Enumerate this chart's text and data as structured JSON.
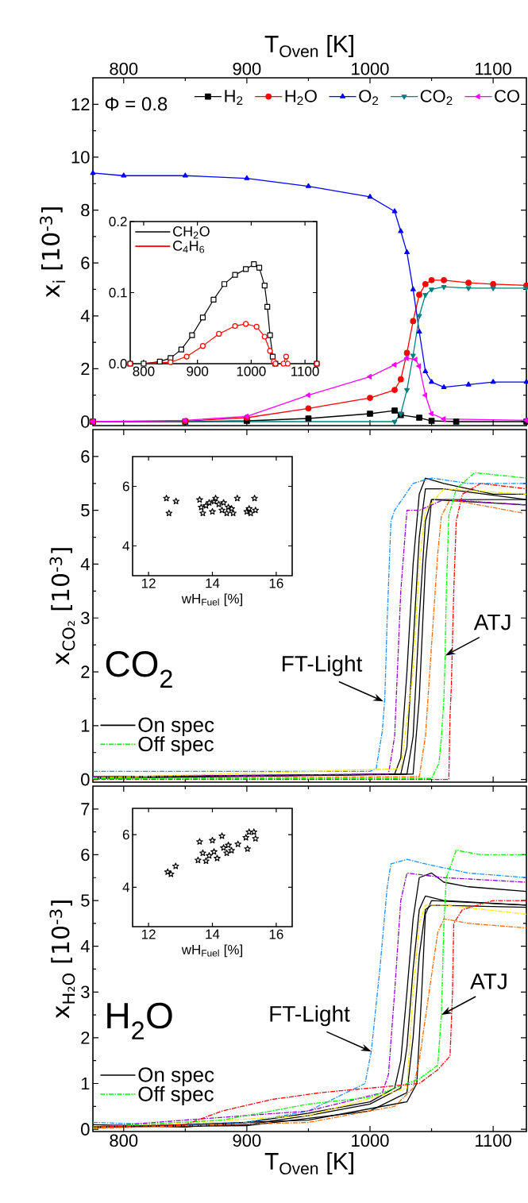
{
  "chart_data": [
    {
      "type": "line",
      "xlim": [
        775,
        1127
      ],
      "xticks": [
        800,
        900,
        1000,
        1100
      ],
      "xlabel": "T$_{Oven}$ [K]",
      "ylim": [
        -0.15,
        13
      ],
      "yticks": [
        0,
        2,
        4,
        6,
        8,
        10,
        12
      ],
      "ylabel": "x$_{i}$ [10$^{-3}$]",
      "legend": "top right",
      "annotations": [
        "Φ = 0.8"
      ],
      "series": [
        {
          "name": "H$_{2}$",
          "color": "#000000",
          "marker": "square",
          "x": [
            775,
            850,
            900,
            950,
            1000,
            1020,
            1025,
            1040,
            1050,
            1070,
            1127
          ],
          "values": [
            0,
            0,
            0.03,
            0.12,
            0.3,
            0.42,
            0.25,
            0.15,
            0.03,
            0,
            0
          ]
        },
        {
          "name": "H$_{2}$O",
          "color": "#ff0000",
          "marker": "circle",
          "x": [
            775,
            850,
            900,
            950,
            1000,
            1020,
            1025,
            1030,
            1035,
            1040,
            1045,
            1050,
            1060,
            1080,
            1100,
            1127
          ],
          "values": [
            0,
            0.02,
            0.15,
            0.5,
            0.9,
            1.2,
            1.6,
            2.6,
            3.8,
            4.8,
            5.2,
            5.35,
            5.35,
            5.25,
            5.2,
            5.15
          ]
        },
        {
          "name": "O$_{2}$",
          "color": "#0000ff",
          "marker": "triangle",
          "x": [
            775,
            800,
            850,
            900,
            950,
            1000,
            1020,
            1025,
            1030,
            1035,
            1040,
            1045,
            1050,
            1060,
            1080,
            1100,
            1127
          ],
          "values": [
            9.4,
            9.3,
            9.3,
            9.2,
            8.9,
            8.5,
            7.95,
            7.2,
            6.4,
            5.0,
            3.4,
            1.9,
            1.5,
            1.3,
            1.4,
            1.5,
            1.5
          ]
        },
        {
          "name": "CO$_{2}$",
          "color": "#008080",
          "marker": "triangle-down",
          "x": [
            775,
            1020,
            1025,
            1030,
            1035,
            1040,
            1045,
            1050,
            1060,
            1080,
            1100,
            1127
          ],
          "values": [
            0,
            0,
            0.3,
            1.2,
            2.5,
            4.0,
            4.8,
            5.0,
            5.1,
            5.05,
            5.05,
            5.05
          ]
        },
        {
          "name": "CO",
          "color": "#ff00ff",
          "marker": "triangle-left",
          "x": [
            775,
            850,
            900,
            950,
            1000,
            1020,
            1030,
            1037,
            1040,
            1045,
            1050,
            1060,
            1127
          ],
          "values": [
            0,
            0.05,
            0.2,
            1.0,
            1.7,
            2.15,
            2.4,
            2.35,
            2.1,
            1.0,
            0.3,
            0.1,
            0.05
          ]
        }
      ]
    },
    {
      "type": "line",
      "xlim": [
        775,
        1122
      ],
      "xticks": [
        800,
        900,
        1000,
        1100
      ],
      "ylim": [
        0,
        0.2
      ],
      "yticks": [
        {
          "value": 0,
          "label": "0.0"
        },
        0.1,
        0.2
      ],
      "legend": "top left",
      "series": [
        {
          "name": "CH$_{2}$O",
          "color": "#000000",
          "marker": "square",
          "x": [
            775,
            800,
            830,
            850,
            870,
            890,
            910,
            930,
            950,
            970,
            990,
            1005,
            1015,
            1025,
            1030,
            1035,
            1040,
            1045,
            1122
          ],
          "values": [
            0,
            0,
            0.003,
            0.008,
            0.02,
            0.04,
            0.065,
            0.09,
            0.112,
            0.125,
            0.133,
            0.14,
            0.135,
            0.11,
            0.08,
            0.04,
            0.01,
            0,
            0
          ]
        },
        {
          "name": "C$_{4}$H$_{6}$",
          "color": "#ff0000",
          "marker": "circle",
          "x": [
            775,
            850,
            880,
            910,
            940,
            970,
            990,
            1010,
            1025,
            1035,
            1042,
            1045,
            1060,
            1065,
            1068,
            1122
          ],
          "values": [
            0,
            0.002,
            0.01,
            0.025,
            0.042,
            0.053,
            0.056,
            0.052,
            0.038,
            0.018,
            0.003,
            0,
            0,
            0.01,
            0,
            0
          ]
        }
      ]
    },
    {
      "type": "line",
      "xlim": [
        775,
        1127
      ],
      "xticks": [
        800,
        900,
        1000,
        1100
      ],
      "tick_labels": "y",
      "ylim": [
        -0.05,
        6.5
      ],
      "yticks": [
        0,
        1,
        2,
        3,
        4,
        5,
        6
      ],
      "ylabel": "x$_{CO₂}$ [10$^{-3}$]",
      "legend": "bottom left",
      "annotations": [
        "CO$_{2}$",
        {
          "text": "FT-Light",
          "x": 1011,
          "y": 1.45
        },
        {
          "text": "ATJ",
          "x": 1061,
          "y": 2.3
        }
      ],
      "series": [
        {
          "name": "On spec",
          "color": "#000000",
          "line_style": "solid",
          "x": [
            775,
            1020,
            1025,
            1030,
            1035,
            1040,
            1045,
            1060,
            1080,
            1100,
            1127
          ],
          "values": [
            0.05,
            0.1,
            0.4,
            2.0,
            4.0,
            5.3,
            5.6,
            5.5,
            5.4,
            5.3,
            5.3
          ]
        },
        {
          "color": "#000000",
          "line_style": "solid",
          "x": [
            775,
            1025,
            1030,
            1035,
            1040,
            1045,
            1060,
            1127
          ],
          "values": [
            0.03,
            0.1,
            0.6,
            2.5,
            4.5,
            5.4,
            5.4,
            5.2
          ]
        },
        {
          "color": "#000000",
          "line_style": "solid",
          "x": [
            775,
            1030,
            1035,
            1040,
            1045,
            1050,
            1127
          ],
          "values": [
            0.03,
            0.1,
            0.8,
            3.0,
            4.8,
            5.2,
            5.1
          ]
        },
        {
          "color": "#000000",
          "line_style": "solid",
          "x": [
            775,
            1035,
            1040,
            1045,
            1050,
            1127
          ],
          "values": [
            0.02,
            0.1,
            1.5,
            4.0,
            5.2,
            5.2
          ]
        },
        {
          "color": "#1e90ff",
          "line_style": "dashdot",
          "x": [
            775,
            1000,
            1005,
            1010,
            1012,
            1014,
            1017,
            1020,
            1035,
            1050,
            1080,
            1127
          ],
          "values": [
            0.15,
            0.15,
            0.2,
            0.9,
            1.5,
            3.0,
            4.8,
            5.0,
            5.5,
            5.6,
            5.5,
            5.5
          ]
        },
        {
          "color": "#9400d3",
          "line_style": "dashdot",
          "x": [
            775,
            1015,
            1020,
            1025,
            1030,
            1040,
            1060,
            1127
          ],
          "values": [
            0.05,
            0.1,
            0.8,
            3.5,
            5.0,
            5.0,
            5.2,
            5.1
          ]
        },
        {
          "color": "#ffe600",
          "line_style": "dashdot",
          "x": [
            775,
            1025,
            1035,
            1040,
            1045,
            1060,
            1127
          ],
          "values": [
            0.03,
            0.2,
            2.0,
            4.0,
            5.0,
            5.4,
            5.3
          ]
        },
        {
          "color": "#ff6a00",
          "line_style": "dashdot",
          "x": [
            775,
            1040,
            1045,
            1050,
            1055,
            1058,
            1065,
            1124
          ],
          "values": [
            0.02,
            0.05,
            0.8,
            2.5,
            4.2,
            4.9,
            5.2,
            4.95
          ]
        },
        {
          "name": "Off spec",
          "color": "#00ff00",
          "line_style": "dashdot",
          "x": [
            775,
            1050,
            1056,
            1058,
            1060,
            1061,
            1062,
            1064,
            1070,
            1085,
            1127
          ],
          "values": [
            0.02,
            0.02,
            0.3,
            0.8,
            1.5,
            2.3,
            3.5,
            4.9,
            5.4,
            5.7,
            5.6
          ]
        },
        {
          "color": "#ff0000",
          "line_style": "dashdot",
          "x": [
            775,
            1064,
            1065,
            1066,
            1068,
            1070,
            1075,
            1090,
            1127
          ],
          "values": [
            0,
            0,
            1.2,
            1.7,
            3.5,
            4.8,
            5.3,
            5.5,
            5.4
          ]
        }
      ]
    },
    {
      "type": "scatter",
      "xlim": [
        11.5,
        16.5
      ],
      "xticks": [
        12,
        14,
        16
      ],
      "ylim": [
        3,
        7
      ],
      "yticks": [
        4,
        6
      ],
      "xlabel": "wH$_{Fuel}$ [%]",
      "marker": "star",
      "color": "#000000",
      "x": [
        12.56,
        12.86,
        12.64,
        13.6,
        13.65,
        13.7,
        13.8,
        13.9,
        14.0,
        14.05,
        14.1,
        14.2,
        14.3,
        14.35,
        14.45,
        14.5,
        14.6,
        14.65,
        14.78,
        15.08,
        15.15,
        15.2,
        15.32,
        15.35
      ],
      "values": [
        5.6,
        5.5,
        5.1,
        5.55,
        5.3,
        5.1,
        5.35,
        5.45,
        5.15,
        5.5,
        5.6,
        5.4,
        5.2,
        5.45,
        5.1,
        5.3,
        5.25,
        5.1,
        5.6,
        5.15,
        5.25,
        5.1,
        5.6,
        5.2
      ]
    },
    {
      "type": "line",
      "xlim": [
        775,
        1127
      ],
      "xticks": [
        800,
        900,
        1000,
        1100
      ],
      "xlabel": "T$_{Oven}$ [K]",
      "ylim": [
        -0.05,
        7.5
      ],
      "yticks": [
        0,
        1,
        2,
        3,
        4,
        5,
        6,
        7
      ],
      "ylabel": "x$_{H₂O}$ [10$^{-3}$]",
      "legend": "bottom left",
      "annotations": [
        "H$_{2}$O",
        {
          "text": "FT-Light",
          "x": 1001,
          "y": 1.7
        },
        {
          "text": "ATJ",
          "x": 1058,
          "y": 2.5
        }
      ],
      "series": [
        {
          "name": "On spec",
          "color": "#000000",
          "line_style": "solid",
          "x": [
            775,
            850,
            900,
            950,
            1000,
            1020,
            1025,
            1030,
            1035,
            1040,
            1050,
            1060,
            1080,
            1127
          ],
          "values": [
            0.1,
            0.05,
            0.15,
            0.35,
            0.6,
            0.9,
            1.5,
            3.0,
            4.6,
            5.5,
            5.6,
            5.4,
            5.3,
            5.2
          ]
        },
        {
          "color": "#000000",
          "line_style": "solid",
          "x": [
            775,
            900,
            950,
            1000,
            1025,
            1030,
            1035,
            1040,
            1045,
            1060,
            1127
          ],
          "values": [
            0.05,
            0.1,
            0.3,
            0.55,
            0.9,
            1.8,
            3.5,
            4.8,
            5.1,
            5.0,
            4.9
          ]
        },
        {
          "color": "#000000",
          "line_style": "solid",
          "x": [
            775,
            900,
            1000,
            1030,
            1035,
            1040,
            1045,
            1050,
            1127
          ],
          "values": [
            0.05,
            0.08,
            0.4,
            0.8,
            2.0,
            3.8,
            4.8,
            4.9,
            4.85
          ]
        },
        {
          "color": "#000000",
          "line_style": "solid",
          "x": [
            775,
            950,
            1030,
            1038,
            1042,
            1045,
            1050,
            1127
          ],
          "values": [
            0.03,
            0.2,
            0.6,
            1.0,
            3.0,
            4.7,
            5.0,
            4.9
          ]
        },
        {
          "color": "#1e90ff",
          "line_style": "dashdot",
          "x": [
            775,
            850,
            900,
            950,
            996,
            1001,
            1008,
            1014,
            1017,
            1030,
            1045,
            1080,
            1127
          ],
          "values": [
            0.15,
            0.08,
            0.15,
            0.4,
            1.0,
            1.7,
            3.5,
            5.3,
            5.8,
            5.9,
            5.8,
            5.6,
            5.5
          ]
        },
        {
          "color": "#9400d3",
          "line_style": "dashdot",
          "x": [
            775,
            950,
            1010,
            1015,
            1020,
            1025,
            1030,
            1060,
            1127
          ],
          "values": [
            0.05,
            0.4,
            0.8,
            1.2,
            3.0,
            5.0,
            5.6,
            5.5,
            5.4
          ]
        },
        {
          "color": "#ffe600",
          "line_style": "dashdot",
          "x": [
            775,
            950,
            1030,
            1035,
            1040,
            1045,
            1060,
            1127
          ],
          "values": [
            0.03,
            0.3,
            0.9,
            3.0,
            4.5,
            4.9,
            4.9,
            4.7
          ]
        },
        {
          "color": "#ff6a00",
          "line_style": "dashdot",
          "x": [
            775,
            950,
            1020,
            1035,
            1040,
            1048,
            1055,
            1060,
            1080,
            1127
          ],
          "values": [
            0.02,
            0.15,
            0.5,
            0.9,
            1.5,
            3.0,
            4.3,
            4.6,
            4.5,
            4.4
          ]
        },
        {
          "name": "Off spec",
          "color": "#00ff00",
          "line_style": "dashdot",
          "x": [
            775,
            880,
            950,
            1000,
            1040,
            1055,
            1058,
            1060,
            1062,
            1070,
            1090,
            1127
          ],
          "values": [
            0.05,
            0.2,
            0.55,
            0.7,
            1.1,
            1.4,
            2.5,
            4.5,
            5.5,
            6.1,
            6.0,
            6.0
          ]
        },
        {
          "color": "#ff0000",
          "line_style": "dashdot",
          "x": [
            775,
            850,
            880,
            920,
            960,
            1000,
            1040,
            1055,
            1065,
            1067,
            1068,
            1075,
            1100,
            1127
          ],
          "values": [
            0.05,
            0.1,
            0.4,
            0.65,
            0.8,
            0.9,
            1.0,
            1.3,
            1.6,
            3.0,
            4.5,
            4.8,
            5.0,
            5.0
          ]
        }
      ]
    },
    {
      "type": "scatter",
      "xlim": [
        11.5,
        16.5
      ],
      "xticks": [
        12,
        14,
        16
      ],
      "ylim": [
        2.5,
        7
      ],
      "yticks": [
        4,
        6
      ],
      "xlabel": "wH$_{Fuel}$ [%]",
      "marker": "star",
      "color": "#000000",
      "x": [
        12.6,
        12.7,
        12.85,
        13.55,
        13.6,
        13.7,
        13.8,
        13.9,
        14.0,
        14.05,
        14.15,
        14.3,
        14.35,
        14.45,
        14.5,
        14.6,
        14.8,
        15.05,
        15.1,
        15.15,
        15.3,
        15.35
      ],
      "values": [
        4.58,
        4.5,
        4.8,
        5.03,
        5.73,
        5.3,
        5.0,
        5.2,
        5.78,
        5.35,
        5.1,
        5.95,
        5.5,
        5.3,
        5.6,
        5.4,
        5.64,
        5.89,
        5.46,
        6.1,
        6.1,
        5.85
      ]
    }
  ]
}
